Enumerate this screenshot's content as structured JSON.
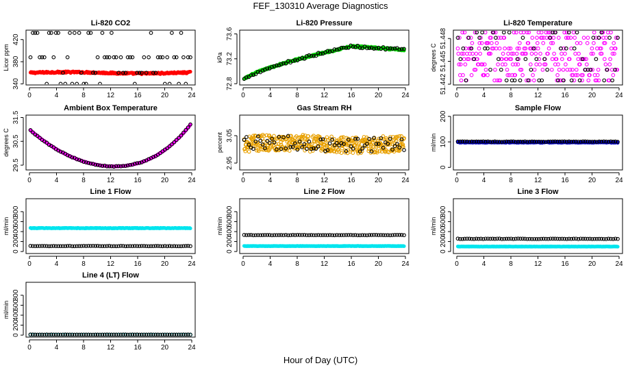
{
  "figure": {
    "title": "FEF_130310  Average Diagnostics",
    "xlabel": "Hour of Day (UTC)"
  },
  "chart_data": [
    {
      "type": "scatter",
      "title": "Li-820 CO2",
      "ylabel": "Licor ppm",
      "xticks": [
        "0",
        "4",
        "8",
        "12",
        "16",
        "20",
        "24"
      ],
      "yticks": [
        "340",
        "380",
        "420"
      ],
      "xlim": [
        0,
        24
      ],
      "ylim": [
        338,
        437
      ],
      "series": [
        {
          "color": "#ff0000",
          "style": "filled",
          "fn": "flat",
          "base": 360,
          "amp": 1.2,
          "noise": 1.5,
          "n": 300
        },
        {
          "color": "#000000",
          "style": "open",
          "fn": "discrete",
          "levels": [
            340,
            360,
            388,
            432
          ],
          "n": 70
        }
      ]
    },
    {
      "type": "scatter",
      "title": "Li-820 Pressure",
      "ylabel": "kPa",
      "xticks": [
        "0",
        "4",
        "8",
        "12",
        "16",
        "20",
        "24"
      ],
      "yticks": [
        "72.8",
        "73.2",
        "73.6"
      ],
      "xlim": [
        0,
        24
      ],
      "ylim": [
        72.78,
        73.66
      ],
      "series": [
        {
          "color": "#00cc00",
          "style": "filled",
          "fn": "pressure",
          "noise": 0.015,
          "n": 220
        },
        {
          "color": "#000000",
          "style": "open",
          "fn": "pressure",
          "noise": 0.02,
          "n": 70
        }
      ]
    },
    {
      "type": "scatter",
      "title": "Li-820 Temperature",
      "ylabel": "degrees C",
      "xticks": [
        "0",
        "4",
        "8",
        "12",
        "16",
        "20",
        "24"
      ],
      "yticks": [
        "51.442",
        "51.445",
        "51.448"
      ],
      "xlim": [
        0,
        24
      ],
      "ylim": [
        51.4419,
        51.4491
      ],
      "series": [
        {
          "color": "#ff00ff",
          "style": "open",
          "fn": "discrete",
          "levels": [
            51.4425,
            51.4432,
            51.4439,
            51.4446,
            51.4453,
            51.446,
            51.4467,
            51.4474,
            51.4481,
            51.4488
          ],
          "n": 280
        },
        {
          "color": "#000000",
          "style": "open",
          "fn": "discrete",
          "levels": [
            51.4425,
            51.4439,
            51.4453,
            51.4467,
            51.4481,
            51.4488
          ],
          "n": 60
        }
      ]
    },
    {
      "type": "scatter",
      "title": "Ambient Box Temperature",
      "ylabel": "degrees C",
      "xticks": [
        "0",
        "4",
        "8",
        "12",
        "16",
        "20",
        "24"
      ],
      "yticks": [
        "29.5",
        "30.5",
        "31.5"
      ],
      "xlim": [
        0,
        24
      ],
      "ylim": [
        29.3,
        31.6
      ],
      "series": [
        {
          "color": "#ff00ff",
          "style": "filled",
          "fn": "ambient",
          "noise": 0.01,
          "n": 300
        },
        {
          "color": "#000000",
          "style": "open",
          "fn": "ambient",
          "noise": 0.015,
          "n": 70
        }
      ]
    },
    {
      "type": "scatter",
      "title": "Gas Stream RH",
      "ylabel": "percent",
      "xticks": [
        "0",
        "4",
        "8",
        "12",
        "16",
        "20",
        "24"
      ],
      "yticks": [
        "2.95",
        "3.05"
      ],
      "xlim": [
        0,
        24
      ],
      "ylim": [
        2.925,
        3.125
      ],
      "series": [
        {
          "color": "#e8a000",
          "style": "open",
          "fn": "flat",
          "base": 3.02,
          "amp": 0.005,
          "noise": 0.03,
          "n": 420
        },
        {
          "color": "#000000",
          "style": "open",
          "fn": "flat",
          "base": 3.02,
          "amp": 0.005,
          "noise": 0.025,
          "n": 70
        }
      ]
    },
    {
      "type": "scatter",
      "title": "Sample Flow",
      "ylabel": "ml/min",
      "xticks": [
        "0",
        "4",
        "8",
        "12",
        "16",
        "20",
        "24"
      ],
      "yticks": [
        "0",
        "100",
        "200"
      ],
      "xlim": [
        0,
        24
      ],
      "ylim": [
        -10,
        205
      ],
      "series": [
        {
          "color": "#0000cc",
          "style": "filled",
          "fn": "flat",
          "base": 98,
          "amp": 0,
          "noise": 1.5,
          "n": 300
        },
        {
          "color": "#000000",
          "style": "open",
          "fn": "flat",
          "base": 101,
          "amp": 0,
          "noise": 1,
          "n": 70
        }
      ]
    },
    {
      "type": "scatter",
      "title": "Line 1 Flow",
      "ylabel": "ml/min",
      "xticks": [
        "0",
        "4",
        "8",
        "12",
        "16",
        "20",
        "24"
      ],
      "yticks": [
        "0",
        "200",
        "400",
        "600",
        "800"
      ],
      "xlim": [
        0,
        24
      ],
      "ylim": [
        -40,
        1060
      ],
      "series": [
        {
          "color": "#00e5ee",
          "style": "filled",
          "fn": "flat",
          "base": 470,
          "amp": 0,
          "noise": 6,
          "n": 300
        },
        {
          "color": "#000000",
          "style": "open",
          "fn": "flat",
          "base": 110,
          "amp": 0,
          "noise": 3,
          "n": 70
        }
      ]
    },
    {
      "type": "scatter",
      "title": "Line 2 Flow",
      "ylabel": "ml/min",
      "xticks": [
        "0",
        "4",
        "8",
        "12",
        "16",
        "20",
        "24"
      ],
      "yticks": [
        "0",
        "200",
        "400",
        "600",
        "800"
      ],
      "xlim": [
        0,
        24
      ],
      "ylim": [
        -40,
        1060
      ],
      "series": [
        {
          "color": "#00e5ee",
          "style": "filled",
          "fn": "flat",
          "base": 110,
          "amp": 0,
          "noise": 3,
          "n": 300
        },
        {
          "color": "#000000",
          "style": "open",
          "fn": "flat",
          "base": 330,
          "amp": 0,
          "noise": 3,
          "n": 70
        }
      ]
    },
    {
      "type": "scatter",
      "title": "Line 3 Flow",
      "ylabel": "ml/min",
      "xticks": [
        "0",
        "4",
        "8",
        "12",
        "16",
        "20",
        "24"
      ],
      "yticks": [
        "0",
        "200",
        "400",
        "600",
        "800"
      ],
      "xlim": [
        0,
        24
      ],
      "ylim": [
        -40,
        1060
      ],
      "series": [
        {
          "color": "#00e5ee",
          "style": "filled",
          "fn": "flat",
          "base": 100,
          "amp": 0,
          "noise": 3,
          "n": 300
        },
        {
          "color": "#000000",
          "style": "open",
          "fn": "flat",
          "base": 255,
          "amp": 0,
          "noise": 5,
          "n": 70
        }
      ]
    },
    {
      "type": "scatter",
      "title": "Line 4 (LT) Flow",
      "ylabel": "ml/min",
      "xticks": [
        "0",
        "4",
        "8",
        "12",
        "16",
        "20",
        "24"
      ],
      "yticks": [
        "0",
        "200",
        "400",
        "600",
        "800"
      ],
      "xlim": [
        0,
        24
      ],
      "ylim": [
        -40,
        1060
      ],
      "series": [
        {
          "color": "#00e5ee",
          "style": "open",
          "fn": "flat",
          "base": 5,
          "amp": 0,
          "noise": 2,
          "n": 70
        },
        {
          "color": "#000000",
          "style": "open",
          "fn": "flat",
          "base": 10,
          "amp": 0,
          "noise": 2,
          "n": 70
        }
      ]
    }
  ]
}
